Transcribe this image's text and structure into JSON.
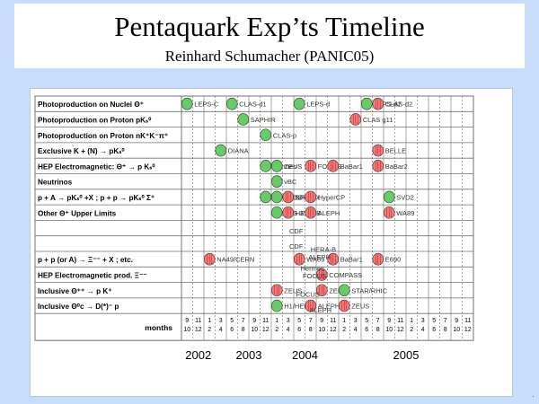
{
  "header": {
    "title": "Pentaquark Exp’ts Timeline",
    "subtitle": "Reinhard Schumacher (PANIC05)"
  },
  "colors": {
    "background": "#c9defc",
    "positive": "#66cc66",
    "negative": "#ff7777",
    "grid": "#707070"
  },
  "rows": [
    {
      "label": "Photoproduction on Nuclei  Θ⁺"
    },
    {
      "label": "Photoproduction on Proton  pKₛ⁰"
    },
    {
      "label": "Photoproduction on Proton  nK⁺K⁻π⁺"
    },
    {
      "label": "Exclusive K + (N) → pKₛ⁰"
    },
    {
      "label": "HEP Electromagnetic: Θ⁺ → p Kₛ⁰"
    },
    {
      "label": "Neutrinos"
    },
    {
      "label": "p + A → pKₛ⁰ +X ; p + p → pKₛ⁰ Σ⁺"
    },
    {
      "label": "Other Θ⁺ Upper Limits"
    },
    {
      "label": ""
    },
    {
      "label": ""
    },
    {
      "label": "p + p (or A) → Ξ⁻⁻ + X ; etc."
    },
    {
      "label": "HEP Electromagnetic prod. Ξ⁻⁻"
    },
    {
      "label": "Inclusive  Θ⁺⁺ → p K⁺"
    },
    {
      "label": "Inclusive  Θ⁰c → D(*)⁻ p"
    }
  ],
  "months_label": "months",
  "months": [
    [
      "9",
      "10"
    ],
    [
      "11",
      "12"
    ],
    [
      "1",
      "2"
    ],
    [
      "3",
      "4"
    ],
    [
      "5",
      "6"
    ],
    [
      "7",
      "8"
    ],
    [
      "9",
      "10"
    ],
    [
      "11",
      "12"
    ],
    [
      "1",
      "2"
    ],
    [
      "3",
      "4"
    ],
    [
      "5",
      "6"
    ],
    [
      "7",
      "8"
    ],
    [
      "9",
      "10"
    ],
    [
      "11",
      "12"
    ],
    [
      "1",
      "2"
    ],
    [
      "3",
      "4"
    ],
    [
      "5",
      "6"
    ],
    [
      "7",
      "8"
    ],
    [
      "9",
      "10"
    ],
    [
      "11",
      "12"
    ],
    [
      "1",
      "2"
    ],
    [
      "3",
      "4"
    ],
    [
      "5",
      "6"
    ],
    [
      "7",
      "8"
    ],
    [
      "9",
      "10"
    ],
    [
      "11",
      "12"
    ]
  ],
  "years": [
    "2002",
    "2003",
    "2004",
    "2005"
  ],
  "markers": [
    {
      "row": 0,
      "col": 0,
      "type": "pos",
      "label": "LEPS-C"
    },
    {
      "row": 0,
      "col": 4,
      "type": "pos",
      "label": "CLAS-d1"
    },
    {
      "row": 0,
      "col": 10,
      "type": "pos",
      "label": "LEPS-d"
    },
    {
      "row": 0,
      "col": 16,
      "type": "pos",
      "label": "LEPS-d2"
    },
    {
      "row": 0,
      "col": 17,
      "type": "neg",
      "label": "CLAS-d2"
    },
    {
      "row": 1,
      "col": 5,
      "type": "pos",
      "label": "SAPHIR"
    },
    {
      "row": 1,
      "col": 15,
      "type": "neg",
      "label": "CLAS g11"
    },
    {
      "row": 2,
      "col": 7,
      "type": "pos",
      "label": "CLAS-p"
    },
    {
      "row": 3,
      "col": 3,
      "type": "pos",
      "label": "DIANA"
    },
    {
      "row": 3,
      "col": 17,
      "type": "neg",
      "label": "BELLE"
    },
    {
      "row": 4,
      "col": 7,
      "type": "pos",
      "label": "Hermes"
    },
    {
      "row": 4,
      "col": 8,
      "type": "pos",
      "label": "ZEUS"
    },
    {
      "row": 4,
      "col": 11,
      "type": "neg",
      "label": "FOCUS"
    },
    {
      "row": 4,
      "col": 13,
      "type": "neg",
      "label": "BaBar1"
    },
    {
      "row": 4,
      "col": 17,
      "type": "neg",
      "label": "BaBar2"
    },
    {
      "row": 5,
      "col": 8,
      "type": "pos",
      "label": "νBC"
    },
    {
      "row": 6,
      "col": 7,
      "type": "pos",
      "label": "COSY-TOF"
    },
    {
      "row": 6,
      "col": 8,
      "type": "pos",
      "label": "SVD2"
    },
    {
      "row": 6,
      "col": 9,
      "type": "neg",
      "label": "SPHINX"
    },
    {
      "row": 6,
      "col": 11,
      "type": "neg",
      "label": "HyperCP"
    },
    {
      "row": 6,
      "col": 18,
      "type": "pos",
      "label": "SVD2"
    },
    {
      "row": 7,
      "col": 8,
      "type": "pos",
      "label": "BES J/Ψ"
    },
    {
      "row": 7,
      "col": 9,
      "type": "neg",
      "label": "HERA-B"
    },
    {
      "row": 7,
      "col": 11,
      "type": "neg",
      "label": "ALEPH"
    },
    {
      "row": 7,
      "col": 18,
      "type": "neg",
      "label": "WA89"
    },
    {
      "row": 10,
      "col": 2,
      "type": "neg",
      "label": "NA49/CERN"
    },
    {
      "row": 10,
      "col": 10,
      "type": "neg",
      "label": "WA89"
    },
    {
      "row": 10,
      "col": 13,
      "type": "neg",
      "label": "BaBar1"
    },
    {
      "row": 10,
      "col": 17,
      "type": "neg",
      "label": "E690"
    },
    {
      "row": 11,
      "col": 12,
      "type": "neg",
      "label": "COMPASS"
    },
    {
      "row": 12,
      "col": 8,
      "type": "neg",
      "label": "ZEUS"
    },
    {
      "row": 12,
      "col": 12,
      "type": "neg",
      "label": "ZEUS"
    },
    {
      "row": 12,
      "col": 14,
      "type": "pos",
      "label": "STAR/RHIC"
    },
    {
      "row": 13,
      "col": 8,
      "type": "pos",
      "label": "H1/HERA"
    },
    {
      "row": 13,
      "col": 11,
      "type": "neg",
      "label": "ALEPH"
    },
    {
      "row": 13,
      "col": 14,
      "type": "neg",
      "label": "ZEUS"
    }
  ],
  "free_labels": [
    "CDF",
    "CDF",
    "HERA-B",
    "ALEPH",
    "Hermes",
    "FOCUS",
    "FOCUS",
    "ALEPH"
  ]
}
